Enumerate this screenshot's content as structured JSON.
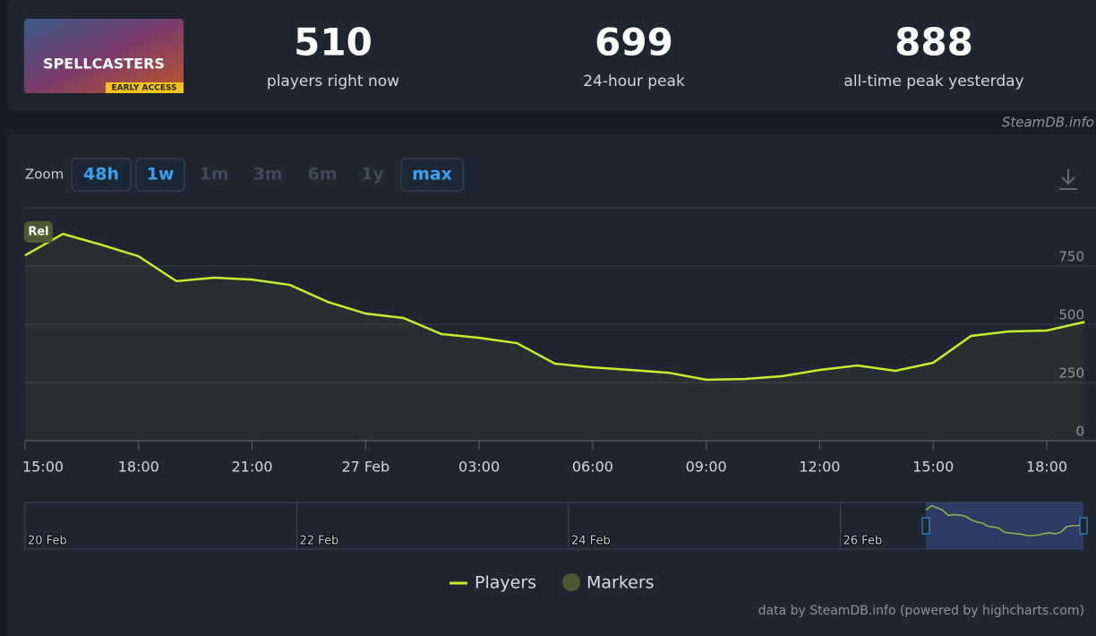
{
  "header": {
    "logo_title": "SPELLCASTERS",
    "logo_badge": "EARLY ACCESS",
    "stats": [
      {
        "value": 510,
        "label": "players right now"
      },
      {
        "value": 699,
        "label": "24-hour peak"
      },
      {
        "value": 888,
        "label": "all-time peak yesterday"
      }
    ],
    "source": "SteamDB.info"
  },
  "zoom": {
    "label": "Zoom",
    "buttons": [
      "48h",
      "1w",
      "1m",
      "3m",
      "6m",
      "1y",
      "max"
    ],
    "enabled": [
      true,
      true,
      false,
      false,
      false,
      false,
      true
    ]
  },
  "chart_data": {
    "type": "line",
    "categories": [
      "15:00",
      null,
      null,
      "18:00",
      null,
      null,
      "21:00",
      null,
      null,
      "27 Feb",
      null,
      null,
      "03:00",
      null,
      null,
      "06:00",
      null,
      null,
      "09:00",
      null,
      null,
      "12:00",
      null,
      null,
      "15:00",
      null,
      null,
      "18:00",
      null
    ],
    "series": [
      {
        "name": "Players",
        "color": "#c2ee2d",
        "values": [
          796,
          888,
          842,
          792,
          685,
          700,
          692,
          669,
          596,
          546,
          527,
          458,
          442,
          419,
          331,
          315,
          304,
          292,
          262,
          265,
          277,
          304,
          323,
          300,
          335,
          450,
          469,
          473,
          510
        ]
      }
    ],
    "ylim": [
      0,
      1000
    ],
    "yticks": [
      0,
      250,
      500,
      750
    ],
    "grid": true,
    "annotations": [
      {
        "label": "Rel"
      }
    ],
    "markers_legend": {
      "name": "Markers",
      "color": "#4b5a31"
    },
    "navigator_labels": [
      "20 Feb",
      "22 Feb",
      "24 Feb",
      "26 Feb"
    ],
    "credits": "data by SteamDB.info (powered by highcharts.com)"
  }
}
